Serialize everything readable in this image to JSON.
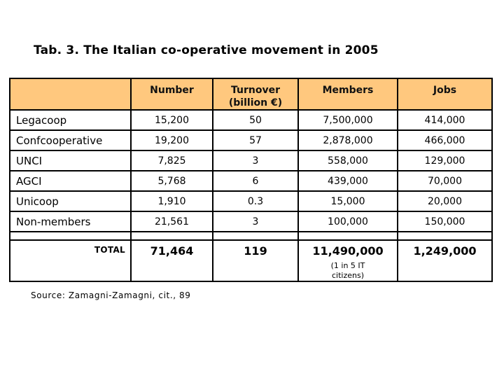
{
  "slide": {
    "title": "Tab. 3. The Italian co-operative movement in 2005",
    "source": "Source: Zamagni-Zamagni, cit., 89"
  },
  "colors": {
    "header_bg": "#FFC87E",
    "table_border": "#000000",
    "text": "#000000",
    "background": "#FFFFFF"
  },
  "table": {
    "header": {
      "organization": "",
      "number": "Number",
      "turnover_line1": "Turnover",
      "turnover_line2": "(billion €)",
      "members": "Members",
      "jobs": "Jobs"
    },
    "rows": [
      {
        "label": "Legacoop",
        "number": "15,200",
        "turnover": "50",
        "members": "7,500,000",
        "jobs": "414,000"
      },
      {
        "label": "Confcooperative",
        "number": "19,200",
        "turnover": "57",
        "members": "2,878,000",
        "jobs": "466,000"
      },
      {
        "label": "UNCI",
        "number": "7,825",
        "turnover": "3",
        "members": "558,000",
        "jobs": "129,000"
      },
      {
        "label": "AGCI",
        "number": "5,768",
        "turnover": "6",
        "members": "439,000",
        "jobs": "70,000"
      },
      {
        "label": "Unicoop",
        "number": "1,910",
        "turnover": "0.3",
        "members": "15,000",
        "jobs": "20,000"
      },
      {
        "label": "Non-members",
        "number": "21,561",
        "turnover": "3",
        "members": "100,000",
        "jobs": "150,000"
      }
    ],
    "total": {
      "label": "TOTAL",
      "number": "71,464",
      "turnover": "119",
      "members": "11,490,000",
      "members_note": "(1 in 5 IT citizens)",
      "jobs": "1,249,000"
    }
  }
}
